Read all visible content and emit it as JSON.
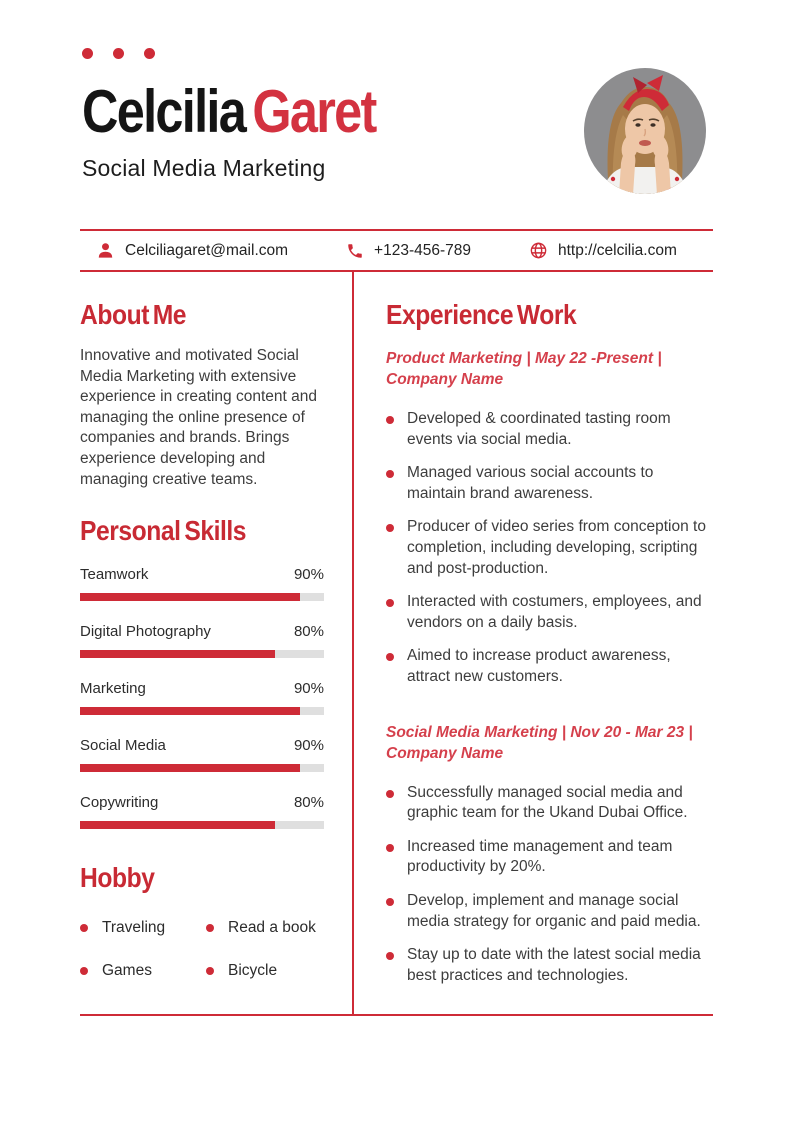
{
  "colors": {
    "accent": "#CE2B37",
    "job_heading_red": "#D5404C",
    "name_red": "#D33240",
    "bar_track": "#DFDFDF",
    "body_text": "#3D3D3D"
  },
  "header": {
    "first_name": "Celcilia",
    "last_name": "Garet",
    "job_title": "Social Media Marketing",
    "photo": "woman-portrait-red-headband"
  },
  "contact": {
    "email": {
      "icon": "user-icon",
      "text": "Celciliagaret@mail.com"
    },
    "phone": {
      "icon": "phone-icon",
      "text": "+123-456-789"
    },
    "website": {
      "icon": "globe-icon",
      "text": "http://celcilia.com"
    }
  },
  "about": {
    "title": "About Me",
    "text": "Innovative and motivated Social Media Marketing with extensive experience in creating content and managing the online presence of companies and brands. Brings experience developing and managing creative teams."
  },
  "skills": {
    "title": "Personal Skills",
    "items": [
      {
        "label": "Teamwork",
        "percent": 90,
        "display": "90%"
      },
      {
        "label": "Digital Photography",
        "percent": 80,
        "display": "80%"
      },
      {
        "label": "Marketing",
        "percent": 90,
        "display": "90%"
      },
      {
        "label": "Social Media",
        "percent": 90,
        "display": "90%"
      },
      {
        "label": "Copywriting",
        "percent": 80,
        "display": "80%"
      }
    ]
  },
  "hobby": {
    "title": "Hobby",
    "items": [
      "Traveling",
      "Read a book",
      "Games",
      "Bicycle"
    ]
  },
  "experience": {
    "title": "Experience Work",
    "jobs": [
      {
        "heading": "Product Marketing | May 22 -Present | Company Name",
        "bullets": [
          "Developed & coordinated tasting room events via social media.",
          "Managed various social accounts to maintain brand awareness.",
          "Producer of video series from conception to completion, including developing, scripting and post-production.",
          "Interacted with costumers, employees, and vendors on a daily basis.",
          "Aimed to increase product awareness, attract new customers."
        ]
      },
      {
        "heading": "Social Media Marketing | Nov 20 - Mar 23 | Company Name",
        "bullets": [
          "Successfully managed social media and graphic team for the Ukand Dubai Office.",
          "Increased time management and team productivity by 20%.",
          "Develop, implement and manage social media strategy for organic and paid media.",
          "Stay up to date with the latest social media best practices and technologies."
        ]
      }
    ]
  }
}
